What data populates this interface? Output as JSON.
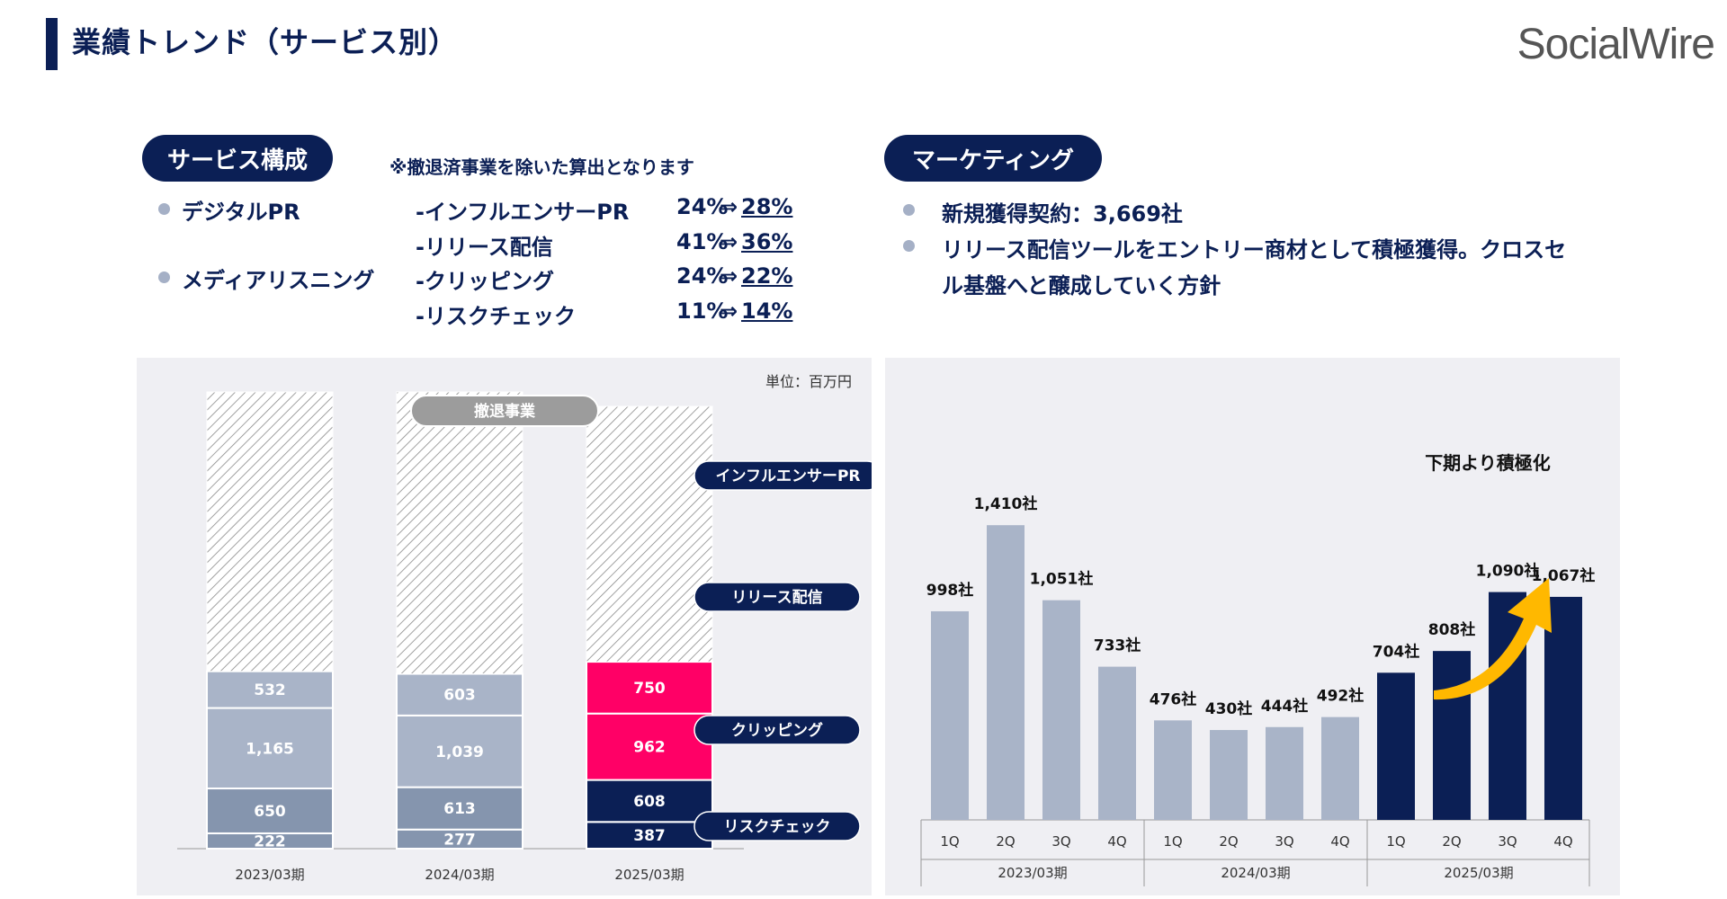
{
  "header": {
    "title": "業績トレンド（サービス別）",
    "logo": "SocialWire"
  },
  "service": {
    "pill": "サービス構成",
    "note": "※撤退済事業を除いた算出となります",
    "categories": [
      "デジタルPR",
      "メディアリスニング"
    ],
    "rows": [
      {
        "label": "-インフルエンサーPR",
        "from": "24%",
        "arrow": "⇒",
        "to": "28%"
      },
      {
        "label": "-リリース配信",
        "from": "41%",
        "arrow": "⇒",
        "to": "36%"
      },
      {
        "label": "-クリッピング",
        "from": "24%",
        "arrow": "⇒",
        "to": "22%"
      },
      {
        "label": "-リスクチェック",
        "from": "11%",
        "arrow": "⇒",
        "to": "14%"
      }
    ]
  },
  "marketing": {
    "pill": "マーケティング",
    "bullet1": "新規獲得契約：3,669社",
    "bullet2_line1": "リリース配信ツールをエントリー商材として積極獲得。クロスセ",
    "bullet2_line2": "ル基盤へと醸成していく方針"
  },
  "colors": {
    "navy": "#0b1f55",
    "grey_light": "#a9b4c8",
    "grey_dark": "#8595ae",
    "pink": "#ff0066",
    "accent_arrow": "#ffb800"
  },
  "chart_data": [
    {
      "type": "bar",
      "stacked": true,
      "unit_label": "単位：百万円",
      "categories": [
        "2023/03期",
        "2024/03期",
        "2025/03期"
      ],
      "series": [
        {
          "name": "リスクチェック",
          "values": [
            222,
            277,
            387
          ]
        },
        {
          "name": "クリッピング",
          "values": [
            650,
            613,
            608
          ]
        },
        {
          "name": "リリース配信",
          "values": [
            1165,
            1039,
            962
          ]
        },
        {
          "name": "インフルエンサーPR",
          "values": [
            532,
            603,
            750
          ]
        }
      ],
      "withdrawn_label": "撤退事業"
    },
    {
      "type": "bar",
      "categories": [
        "1Q",
        "2Q",
        "3Q",
        "4Q",
        "1Q",
        "2Q",
        "3Q",
        "4Q",
        "1Q",
        "2Q",
        "3Q",
        "4Q"
      ],
      "groups": [
        "2023/03期",
        "2024/03期",
        "2025/03期"
      ],
      "values": [
        998,
        1410,
        1051,
        733,
        476,
        430,
        444,
        492,
        704,
        808,
        1090,
        1067
      ],
      "labels": [
        "998社",
        "1,410社",
        "1,051社",
        "733社",
        "476社",
        "430社",
        "444社",
        "492社",
        "704社",
        "808社",
        "1,090社",
        "1,067社"
      ],
      "annotation": "下期より積極化"
    }
  ]
}
